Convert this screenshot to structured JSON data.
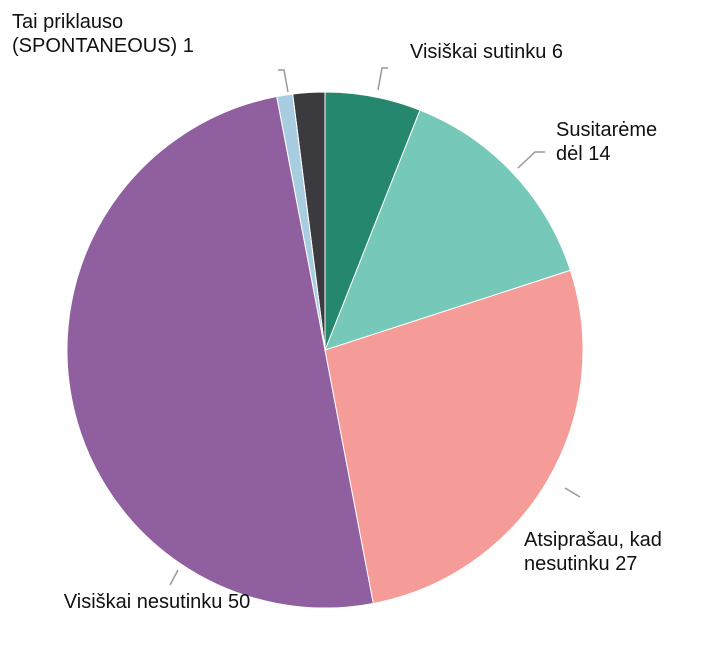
{
  "chart_data": {
    "type": "pie",
    "categories": [
      "Visiškai sutinku",
      "Susitarėme dėl",
      "Atsiprašau, kad nesutinku",
      "Visiškai nesutinku",
      "Tai priklauso (SPONTANEOUS)",
      null
    ],
    "values": [
      6,
      14,
      27,
      50,
      1,
      2
    ],
    "colors": [
      "#26876f",
      "#76c8b8",
      "#f59b98",
      "#8f5f9f",
      "#a8cde0",
      "#3b3b3f"
    ]
  }
}
